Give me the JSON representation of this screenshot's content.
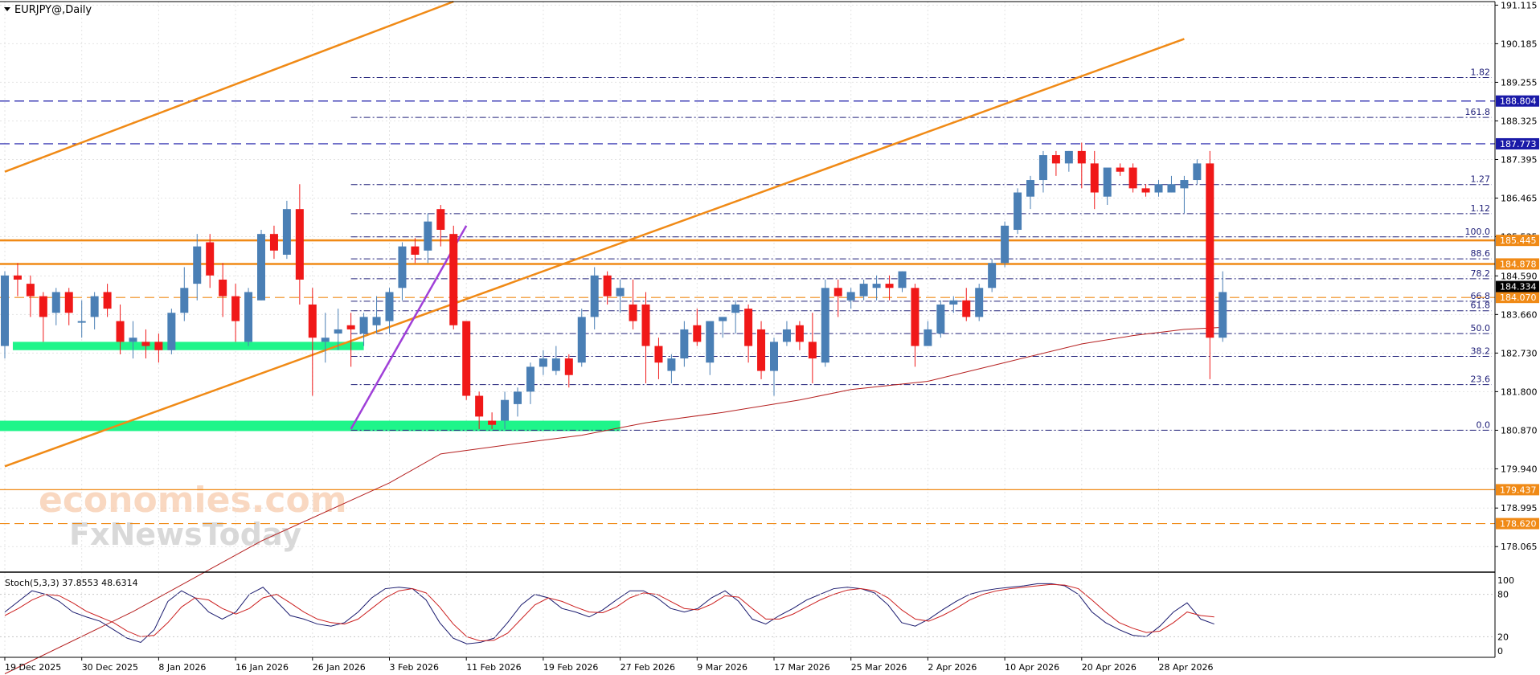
{
  "chart_data": {
    "type": "candlestick",
    "title": "EURJPY@,Daily",
    "symbol": "EURJPY@",
    "timeframe": "Daily",
    "ylim": [
      177.45,
      191.2
    ],
    "y_ticks": [
      "191.115",
      "190.185",
      "189.255",
      "188.325",
      "187.395",
      "186.465",
      "185.535",
      "184.590",
      "183.660",
      "182.730",
      "181.800",
      "180.870",
      "179.940",
      "178.995",
      "178.065"
    ],
    "x_labels": [
      {
        "label": "19 Dec 2025",
        "index": 0
      },
      {
        "label": "30 Dec 2025",
        "index": 6
      },
      {
        "label": "8 Jan 2026",
        "index": 12
      },
      {
        "label": "16 Jan 2026",
        "index": 18
      },
      {
        "label": "26 Jan 2026",
        "index": 24
      },
      {
        "label": "3 Feb 2026",
        "index": 30
      },
      {
        "label": "11 Feb 2026",
        "index": 36
      },
      {
        "label": "19 Feb 2026",
        "index": 42
      },
      {
        "label": "27 Feb 2026",
        "index": 48
      },
      {
        "label": "9 Mar 2026",
        "index": 54
      },
      {
        "label": "17 Mar 2026",
        "index": 60
      },
      {
        "label": "25 Mar 2026",
        "index": 66
      },
      {
        "label": "2 Apr 2026",
        "index": 72
      },
      {
        "label": "10 Apr 2026",
        "index": 78
      },
      {
        "label": "20 Apr 2026",
        "index": 84
      },
      {
        "label": "28 Apr 2026",
        "index": 90
      }
    ],
    "candles": [
      {
        "o": 182.9,
        "h": 184.7,
        "l": 182.6,
        "c": 184.6
      },
      {
        "o": 184.6,
        "h": 184.9,
        "l": 184.1,
        "c": 184.5
      },
      {
        "o": 184.4,
        "h": 184.6,
        "l": 183.6,
        "c": 184.1
      },
      {
        "o": 184.1,
        "h": 184.2,
        "l": 183.0,
        "c": 183.6
      },
      {
        "o": 183.7,
        "h": 184.3,
        "l": 183.4,
        "c": 184.2
      },
      {
        "o": 184.2,
        "h": 184.3,
        "l": 183.4,
        "c": 183.7
      },
      {
        "o": 183.5,
        "h": 184.0,
        "l": 183.1,
        "c": 183.5
      },
      {
        "o": 183.6,
        "h": 184.2,
        "l": 183.3,
        "c": 184.1
      },
      {
        "o": 184.2,
        "h": 184.4,
        "l": 183.6,
        "c": 183.8
      },
      {
        "o": 183.5,
        "h": 183.9,
        "l": 182.7,
        "c": 183.0
      },
      {
        "o": 183.0,
        "h": 183.5,
        "l": 182.6,
        "c": 183.1
      },
      {
        "o": 183.0,
        "h": 183.3,
        "l": 182.6,
        "c": 182.9
      },
      {
        "o": 183.0,
        "h": 183.2,
        "l": 182.5,
        "c": 182.8
      },
      {
        "o": 182.8,
        "h": 183.8,
        "l": 182.7,
        "c": 183.7
      },
      {
        "o": 183.7,
        "h": 184.8,
        "l": 183.5,
        "c": 184.3
      },
      {
        "o": 184.4,
        "h": 185.6,
        "l": 184.0,
        "c": 185.3
      },
      {
        "o": 185.4,
        "h": 185.6,
        "l": 184.3,
        "c": 184.6
      },
      {
        "o": 184.5,
        "h": 184.9,
        "l": 183.6,
        "c": 184.1
      },
      {
        "o": 184.1,
        "h": 184.4,
        "l": 183.0,
        "c": 183.5
      },
      {
        "o": 183.0,
        "h": 184.3,
        "l": 182.9,
        "c": 184.2
      },
      {
        "o": 184.0,
        "h": 185.7,
        "l": 184.0,
        "c": 185.6
      },
      {
        "o": 185.6,
        "h": 185.8,
        "l": 185.0,
        "c": 185.2
      },
      {
        "o": 185.1,
        "h": 186.4,
        "l": 185.0,
        "c": 186.2
      },
      {
        "o": 186.2,
        "h": 186.8,
        "l": 183.9,
        "c": 184.5
      },
      {
        "o": 183.9,
        "h": 184.3,
        "l": 181.7,
        "c": 183.1
      },
      {
        "o": 183.0,
        "h": 183.7,
        "l": 182.5,
        "c": 183.1
      },
      {
        "o": 183.2,
        "h": 183.8,
        "l": 182.8,
        "c": 183.3
      },
      {
        "o": 183.4,
        "h": 183.7,
        "l": 182.4,
        "c": 183.3
      },
      {
        "o": 183.2,
        "h": 183.7,
        "l": 182.9,
        "c": 183.6
      },
      {
        "o": 183.4,
        "h": 184.1,
        "l": 183.2,
        "c": 183.6
      },
      {
        "o": 183.5,
        "h": 184.3,
        "l": 183.2,
        "c": 184.2
      },
      {
        "o": 184.3,
        "h": 185.4,
        "l": 184.0,
        "c": 185.3
      },
      {
        "o": 185.3,
        "h": 185.5,
        "l": 184.9,
        "c": 185.1
      },
      {
        "o": 185.2,
        "h": 186.1,
        "l": 184.9,
        "c": 185.9
      },
      {
        "o": 186.2,
        "h": 186.3,
        "l": 185.3,
        "c": 185.7
      },
      {
        "o": 185.6,
        "h": 185.8,
        "l": 183.3,
        "c": 183.4
      },
      {
        "o": 183.5,
        "h": 183.5,
        "l": 181.6,
        "c": 181.7
      },
      {
        "o": 181.7,
        "h": 181.8,
        "l": 180.9,
        "c": 181.2
      },
      {
        "o": 181.1,
        "h": 181.3,
        "l": 180.9,
        "c": 181.0
      },
      {
        "o": 181.1,
        "h": 181.8,
        "l": 180.9,
        "c": 181.6
      },
      {
        "o": 181.5,
        "h": 181.9,
        "l": 181.2,
        "c": 181.8
      },
      {
        "o": 181.8,
        "h": 182.5,
        "l": 181.5,
        "c": 182.4
      },
      {
        "o": 182.4,
        "h": 182.8,
        "l": 182.2,
        "c": 182.6
      },
      {
        "o": 182.3,
        "h": 182.9,
        "l": 182.2,
        "c": 182.6
      },
      {
        "o": 182.6,
        "h": 182.7,
        "l": 181.9,
        "c": 182.2
      },
      {
        "o": 182.5,
        "h": 183.8,
        "l": 182.4,
        "c": 183.6
      },
      {
        "o": 183.6,
        "h": 184.8,
        "l": 183.3,
        "c": 184.6
      },
      {
        "o": 184.6,
        "h": 184.7,
        "l": 183.9,
        "c": 184.1
      },
      {
        "o": 184.1,
        "h": 184.5,
        "l": 183.7,
        "c": 184.3
      },
      {
        "o": 183.9,
        "h": 184.5,
        "l": 183.3,
        "c": 183.5
      },
      {
        "o": 183.9,
        "h": 184.2,
        "l": 182.0,
        "c": 182.9
      },
      {
        "o": 182.9,
        "h": 183.1,
        "l": 182.1,
        "c": 182.5
      },
      {
        "o": 182.3,
        "h": 182.7,
        "l": 182.0,
        "c": 182.6
      },
      {
        "o": 182.6,
        "h": 183.5,
        "l": 182.4,
        "c": 183.3
      },
      {
        "o": 183.4,
        "h": 183.8,
        "l": 182.9,
        "c": 183.0
      },
      {
        "o": 182.5,
        "h": 183.4,
        "l": 182.2,
        "c": 183.5
      },
      {
        "o": 183.5,
        "h": 183.6,
        "l": 183.1,
        "c": 183.6
      },
      {
        "o": 183.7,
        "h": 184.0,
        "l": 183.2,
        "c": 183.9
      },
      {
        "o": 183.8,
        "h": 183.9,
        "l": 182.5,
        "c": 182.9
      },
      {
        "o": 183.3,
        "h": 183.5,
        "l": 182.1,
        "c": 182.3
      },
      {
        "o": 182.3,
        "h": 183.1,
        "l": 181.7,
        "c": 183.0
      },
      {
        "o": 183.0,
        "h": 183.5,
        "l": 182.9,
        "c": 183.3
      },
      {
        "o": 183.4,
        "h": 183.5,
        "l": 182.8,
        "c": 183.0
      },
      {
        "o": 183.0,
        "h": 183.7,
        "l": 182.0,
        "c": 182.6
      },
      {
        "o": 182.5,
        "h": 184.5,
        "l": 182.4,
        "c": 184.3
      },
      {
        "o": 184.3,
        "h": 184.5,
        "l": 183.6,
        "c": 184.1
      },
      {
        "o": 184.0,
        "h": 184.3,
        "l": 183.8,
        "c": 184.2
      },
      {
        "o": 184.1,
        "h": 184.5,
        "l": 184.0,
        "c": 184.4
      },
      {
        "o": 184.3,
        "h": 184.6,
        "l": 184.0,
        "c": 184.4
      },
      {
        "o": 184.4,
        "h": 184.6,
        "l": 184.0,
        "c": 184.3
      },
      {
        "o": 184.3,
        "h": 184.7,
        "l": 184.2,
        "c": 184.7
      },
      {
        "o": 184.3,
        "h": 184.4,
        "l": 182.4,
        "c": 182.9
      },
      {
        "o": 182.9,
        "h": 183.5,
        "l": 182.9,
        "c": 183.3
      },
      {
        "o": 183.2,
        "h": 184.0,
        "l": 183.1,
        "c": 183.9
      },
      {
        "o": 183.9,
        "h": 184.1,
        "l": 183.7,
        "c": 184.0
      },
      {
        "o": 184.0,
        "h": 184.3,
        "l": 183.5,
        "c": 183.6
      },
      {
        "o": 183.6,
        "h": 184.4,
        "l": 183.5,
        "c": 184.3
      },
      {
        "o": 184.3,
        "h": 185.0,
        "l": 184.2,
        "c": 184.9
      },
      {
        "o": 184.9,
        "h": 185.9,
        "l": 184.8,
        "c": 185.8
      },
      {
        "o": 185.7,
        "h": 186.7,
        "l": 185.6,
        "c": 186.6
      },
      {
        "o": 186.5,
        "h": 187.0,
        "l": 186.2,
        "c": 186.9
      },
      {
        "o": 186.9,
        "h": 187.6,
        "l": 186.6,
        "c": 187.5
      },
      {
        "o": 187.5,
        "h": 187.6,
        "l": 187.0,
        "c": 187.3
      },
      {
        "o": 187.3,
        "h": 187.6,
        "l": 187.1,
        "c": 187.6
      },
      {
        "o": 187.6,
        "h": 187.8,
        "l": 186.7,
        "c": 187.3
      },
      {
        "o": 187.3,
        "h": 187.6,
        "l": 186.2,
        "c": 186.6
      },
      {
        "o": 186.5,
        "h": 187.1,
        "l": 186.3,
        "c": 187.2
      },
      {
        "o": 187.2,
        "h": 187.3,
        "l": 187.0,
        "c": 187.1
      },
      {
        "o": 187.2,
        "h": 187.3,
        "l": 186.6,
        "c": 186.7
      },
      {
        "o": 186.7,
        "h": 186.8,
        "l": 186.5,
        "c": 186.6
      },
      {
        "o": 186.6,
        "h": 186.9,
        "l": 186.5,
        "c": 186.8
      },
      {
        "o": 186.6,
        "h": 187.0,
        "l": 186.6,
        "c": 186.8
      },
      {
        "o": 186.7,
        "h": 187.0,
        "l": 186.1,
        "c": 186.9
      },
      {
        "o": 186.9,
        "h": 187.4,
        "l": 186.8,
        "c": 187.3
      },
      {
        "o": 187.3,
        "h": 187.6,
        "l": 182.1,
        "c": 183.1
      },
      {
        "o": 183.1,
        "h": 184.7,
        "l": 183.0,
        "c": 184.2
      }
    ],
    "moving_average": [
      {
        "i": 0,
        "v": 175.0
      },
      {
        "i": 10,
        "v": 176.5
      },
      {
        "i": 20,
        "v": 178.2
      },
      {
        "i": 30,
        "v": 179.6
      },
      {
        "i": 34,
        "v": 180.3
      },
      {
        "i": 40,
        "v": 180.55
      },
      {
        "i": 45,
        "v": 180.75
      },
      {
        "i": 50,
        "v": 181.05
      },
      {
        "i": 56,
        "v": 181.3
      },
      {
        "i": 62,
        "v": 181.6
      },
      {
        "i": 66,
        "v": 181.85
      },
      {
        "i": 72,
        "v": 182.05
      },
      {
        "i": 78,
        "v": 182.5
      },
      {
        "i": 84,
        "v": 182.95
      },
      {
        "i": 88,
        "v": 183.15
      },
      {
        "i": 92,
        "v": 183.3
      },
      {
        "i": 95,
        "v": 183.35
      }
    ],
    "trend_lines": [
      {
        "from": {
          "i": 0,
          "v": 187.1
        },
        "to": {
          "i": 35,
          "v": 191.2
        }
      },
      {
        "from": {
          "i": 0,
          "v": 180.0
        },
        "to": {
          "i": 92,
          "v": 190.3
        }
      },
      {
        "from": {
          "i": 27,
          "v": 180.9
        },
        "to": {
          "i": 36,
          "v": 185.8
        }
      }
    ],
    "fibonacci": {
      "x_from_index": 27,
      "levels": [
        {
          "label": "0.0",
          "v": 180.87
        },
        {
          "label": "23.6",
          "v": 181.97
        },
        {
          "label": "38.2",
          "v": 182.65
        },
        {
          "label": "50.0",
          "v": 183.2
        },
        {
          "label": "61.8",
          "v": 183.75
        },
        {
          "label": "66.8",
          "v": 183.98
        },
        {
          "label": "78.2",
          "v": 184.52
        },
        {
          "label": "88.6",
          "v": 185.0
        },
        {
          "label": "100.0",
          "v": 185.53
        },
        {
          "label": "1.12",
          "v": 186.09
        },
        {
          "label": "1.27",
          "v": 186.79
        },
        {
          "label": "161.8",
          "v": 188.41
        },
        {
          "label": "1.82",
          "v": 189.37
        }
      ]
    },
    "horizontal_lines": [
      {
        "v": 188.804,
        "label": "188.804",
        "color": "#1a1aa8",
        "style": "dashed",
        "label_bg": "#1a1aa8"
      },
      {
        "v": 187.773,
        "label": "187.773",
        "color": "#1a1aa8",
        "style": "dashed",
        "label_bg": "#1a1aa8"
      },
      {
        "v": 185.445,
        "label": "185.445",
        "color": "#f08a16",
        "style": "solid",
        "label_bg": "#f08a16"
      },
      {
        "v": 184.878,
        "label": "184.878",
        "color": "#f08a16",
        "style": "solid",
        "label_bg": "#f08a16"
      },
      {
        "v": 184.07,
        "label": "184.070",
        "color": "#f08a16",
        "style": "dashed",
        "label_bg": "#f08a16"
      },
      {
        "v": 179.437,
        "label": "179.437",
        "color": "#f08a16",
        "style": "solid",
        "label_bg": "#f08a16"
      },
      {
        "v": 178.62,
        "label": "178.620",
        "color": "#f08a16",
        "style": "dashed",
        "label_bg": "#f08a16"
      }
    ],
    "current_price": {
      "v": 184.334,
      "label": "184.334"
    },
    "support_zones": [
      {
        "from_index": 1,
        "to_index": 28,
        "v_top": 183.0,
        "v_bottom": 182.8
      },
      {
        "from_index": 0,
        "to_index": 48,
        "v_top": 181.1,
        "v_bottom": 180.85
      }
    ],
    "watermark": {
      "line1": "economies.com",
      "line2": "FxNewsToday"
    },
    "stochastic": {
      "title": "Stoch(5,3,3) 37.8553 48.6314",
      "params": "5,3,3",
      "k_value": 37.8553,
      "d_value": 48.6314,
      "ylim": [
        0,
        100
      ],
      "y_ticks": [
        100,
        80,
        20,
        0
      ],
      "k": [
        55,
        70,
        85,
        80,
        70,
        55,
        48,
        42,
        30,
        18,
        12,
        30,
        70,
        85,
        75,
        55,
        45,
        55,
        80,
        90,
        70,
        50,
        45,
        38,
        35,
        40,
        55,
        75,
        88,
        90,
        88,
        72,
        40,
        18,
        10,
        12,
        18,
        40,
        65,
        80,
        75,
        60,
        55,
        48,
        58,
        72,
        85,
        85,
        75,
        60,
        55,
        60,
        75,
        85,
        70,
        45,
        38,
        50,
        60,
        72,
        80,
        88,
        90,
        88,
        82,
        65,
        40,
        35,
        45,
        58,
        70,
        80,
        85,
        88,
        90,
        92,
        95,
        95,
        92,
        80,
        55,
        40,
        30,
        22,
        20,
        35,
        55,
        68,
        45,
        38
      ],
      "d": [
        50,
        60,
        72,
        80,
        78,
        68,
        56,
        48,
        40,
        28,
        20,
        22,
        40,
        62,
        75,
        72,
        60,
        52,
        60,
        75,
        80,
        68,
        55,
        45,
        40,
        38,
        45,
        60,
        75,
        85,
        88,
        82,
        62,
        38,
        20,
        14,
        15,
        25,
        45,
        65,
        75,
        70,
        62,
        55,
        54,
        62,
        75,
        82,
        80,
        70,
        60,
        58,
        66,
        78,
        76,
        60,
        45,
        45,
        52,
        62,
        72,
        80,
        86,
        88,
        85,
        75,
        58,
        45,
        42,
        50,
        60,
        72,
        80,
        85,
        88,
        90,
        92,
        94,
        93,
        88,
        72,
        55,
        40,
        32,
        26,
        28,
        40,
        55,
        50,
        48
      ]
    }
  }
}
